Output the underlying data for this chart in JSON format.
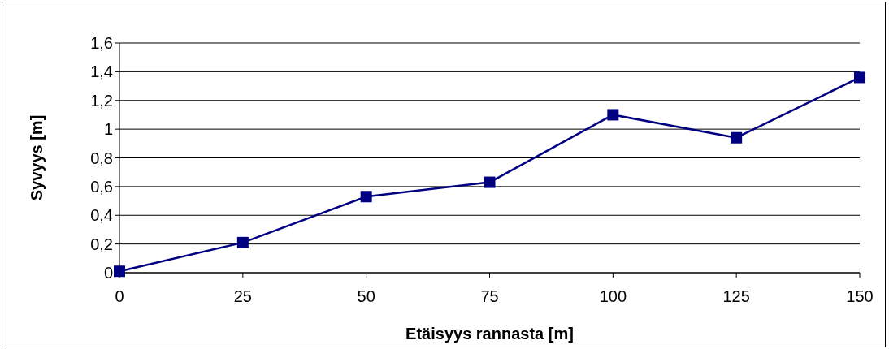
{
  "chart_data": {
    "type": "line",
    "xlabel": "Etäisyys rannasta [m]",
    "ylabel": "Syvyys  [m]",
    "x": [
      0,
      25,
      50,
      75,
      100,
      125,
      150
    ],
    "series": [
      {
        "color": "#000080",
        "values": [
          0.01,
          0.21,
          0.53,
          0.63,
          1.1,
          0.94,
          1.36
        ]
      }
    ],
    "xlim": [
      0,
      150
    ],
    "xticks": [
      0,
      25,
      50,
      75,
      100,
      125,
      150
    ],
    "ylim": [
      0,
      1.6
    ],
    "yticks": [
      0,
      {
        "value": 0.2,
        "label": "0,2"
      },
      {
        "value": 0.4,
        "label": "0,4"
      },
      {
        "value": 0.6,
        "label": "0,6"
      },
      {
        "value": 0.8,
        "label": "0,8"
      },
      1,
      {
        "value": 1.2,
        "label": "1,2"
      },
      {
        "value": 1.4,
        "label": "1,4"
      },
      {
        "value": 1.6,
        "label": "1,6"
      }
    ],
    "grid": "y",
    "marker": "square",
    "line_style": "solid"
  }
}
